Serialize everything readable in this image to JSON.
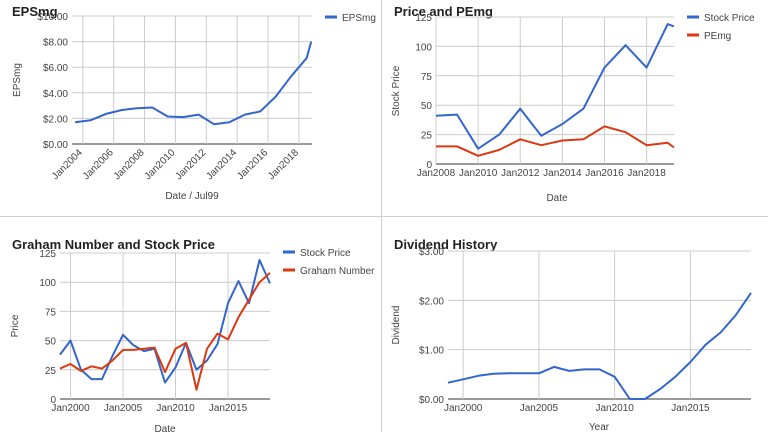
{
  "colors": {
    "blue": "#3366cc",
    "red": "#dc3912",
    "grid": "#cccccc",
    "axis": "#333333",
    "tick": "#444444"
  },
  "chart_data": [
    {
      "type": "line",
      "title": "EPSmg",
      "xlabel": "Date / Jul99",
      "ylabel": "EPSmg",
      "ylim": [
        0,
        10
      ],
      "yticks": [
        "$0.00",
        "$2.00",
        "$4.00",
        "$6.00",
        "$8.00",
        "$10.00"
      ],
      "xticks": [
        "Jan2004",
        "Jan2006",
        "Jan2008",
        "Jan2010",
        "Jan2012",
        "Jan2014",
        "Jan2016",
        "Jan2018"
      ],
      "legend_position": "right",
      "series": [
        {
          "name": "EPSmg",
          "color": "#3366cc",
          "x": [
            2003.5,
            2004.5,
            2005.5,
            2006.5,
            2007.5,
            2008.5,
            2009.5,
            2010.5,
            2011.5,
            2012.5,
            2013.5,
            2014.5,
            2015.5,
            2016.5,
            2017.5,
            2018.5,
            2018.8
          ],
          "values": [
            1.7,
            1.85,
            2.35,
            2.65,
            2.8,
            2.85,
            2.15,
            2.1,
            2.3,
            1.55,
            1.7,
            2.3,
            2.55,
            3.7,
            5.3,
            6.7,
            8.0
          ]
        }
      ]
    },
    {
      "type": "line",
      "title": "Price and PEmg",
      "xlabel": "Date",
      "ylabel": "Stock Price",
      "ylim": [
        0,
        125
      ],
      "yticks": [
        "0",
        "25",
        "50",
        "75",
        "100",
        "125"
      ],
      "xticks": [
        "Jan2008",
        "Jan2010",
        "Jan2012",
        "Jan2014",
        "Jan2016",
        "Jan2018"
      ],
      "legend_position": "right",
      "series": [
        {
          "name": "Stock Price",
          "color": "#3366cc",
          "x": [
            2008,
            2009,
            2010,
            2011,
            2012,
            2013,
            2014,
            2015,
            2016,
            2017,
            2018,
            2019,
            2019.3
          ],
          "values": [
            41,
            42,
            13,
            25,
            47,
            24,
            34,
            47,
            82,
            101,
            82,
            119,
            117
          ]
        },
        {
          "name": "PEmg",
          "color": "#dc3912",
          "x": [
            2008,
            2009,
            2010,
            2011,
            2012,
            2013,
            2014,
            2015,
            2016,
            2017,
            2018,
            2019,
            2019.3
          ],
          "values": [
            15,
            15,
            7,
            12,
            21,
            16,
            20,
            21,
            32,
            27,
            16,
            18,
            14
          ]
        }
      ]
    },
    {
      "type": "line",
      "title": "Graham Number and Stock Price",
      "xlabel": "Date",
      "ylabel": "Price",
      "ylim": [
        0,
        125
      ],
      "yticks": [
        "0",
        "25",
        "50",
        "75",
        "100",
        "125"
      ],
      "xticks": [
        "Jan2000",
        "Jan2005",
        "Jan2010",
        "Jan2015"
      ],
      "legend_position": "right",
      "series": [
        {
          "name": "Stock Price",
          "color": "#3366cc",
          "x": [
            1999,
            2000,
            2001,
            2002,
            2003,
            2004,
            2005,
            2006,
            2007,
            2008,
            2009,
            2010,
            2011,
            2012,
            2013,
            2014,
            2015,
            2016,
            2017,
            2018,
            2019
          ],
          "values": [
            38,
            50,
            25,
            17,
            17,
            37,
            55,
            46,
            41,
            43,
            14,
            27,
            48,
            25,
            33,
            47,
            82,
            101,
            82,
            119,
            99
          ]
        },
        {
          "name": "Graham Number",
          "color": "#dc3912",
          "x": [
            1999,
            2000,
            2001,
            2002,
            2003,
            2004,
            2005,
            2006,
            2007,
            2008,
            2009,
            2010,
            2011,
            2012,
            2013,
            2014,
            2015,
            2016,
            2017,
            2018,
            2019
          ],
          "values": [
            26,
            30,
            24,
            28,
            26,
            33,
            42,
            42,
            43,
            44,
            23,
            43,
            48,
            8,
            43,
            56,
            51,
            70,
            85,
            100,
            108
          ]
        }
      ]
    },
    {
      "type": "line",
      "title": "Dividend History",
      "xlabel": "Year",
      "ylabel": "Dividend",
      "ylim": [
        0,
        3
      ],
      "yticks": [
        "$0.00",
        "$1.00",
        "$2.00",
        "$3.00"
      ],
      "xticks": [
        "Jan2000",
        "Jan2005",
        "Jan2010",
        "Jan2015"
      ],
      "legend_position": "none",
      "series": [
        {
          "name": "",
          "color": "#3366cc",
          "x": [
            1999,
            2000,
            2001,
            2002,
            2003,
            2004,
            2005,
            2006,
            2007,
            2008,
            2009,
            2010,
            2011,
            2012,
            2013,
            2014,
            2015,
            2016,
            2017,
            2018,
            2019
          ],
          "values": [
            0.33,
            0.4,
            0.47,
            0.51,
            0.52,
            0.52,
            0.52,
            0.65,
            0.57,
            0.6,
            0.6,
            0.45,
            0.0,
            0.0,
            0.2,
            0.45,
            0.75,
            1.1,
            1.35,
            1.7,
            2.15
          ]
        }
      ]
    }
  ]
}
